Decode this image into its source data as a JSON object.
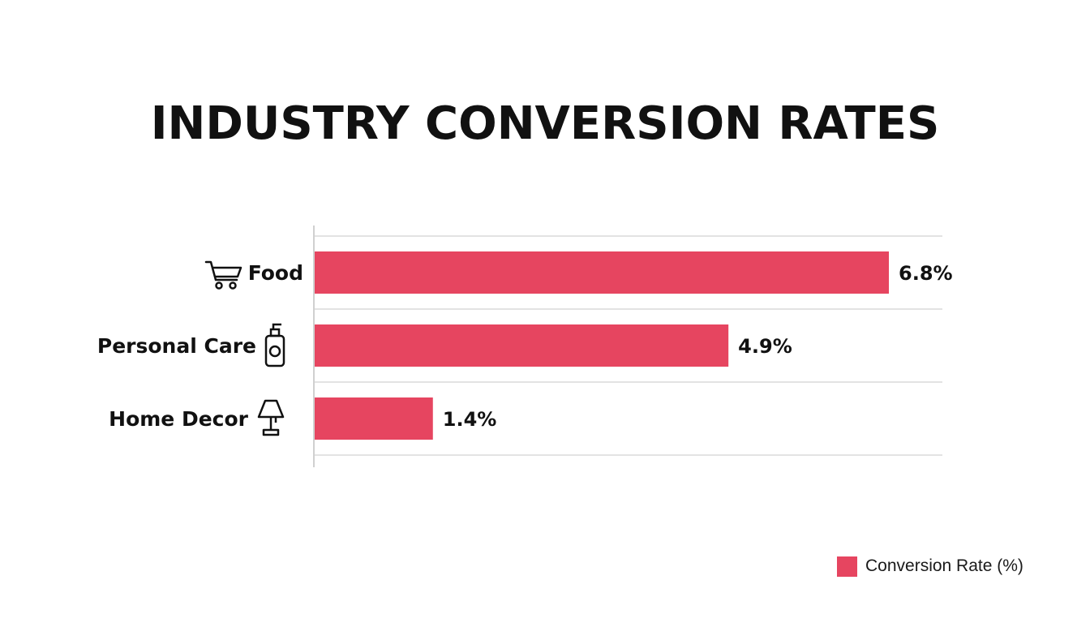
{
  "chart_data": {
    "type": "bar",
    "orientation": "horizontal",
    "title": "INDUSTRY CONVERSION RATES",
    "categories": [
      "Food",
      "Personal Care",
      "Home Decor"
    ],
    "category_icons": [
      "shopping-cart-icon",
      "lotion-bottle-icon",
      "lamp-icon"
    ],
    "series": [
      {
        "name": "Conversion Rate (%)",
        "values": [
          6.8,
          4.9,
          1.4
        ],
        "color": "#e64560"
      }
    ],
    "data_labels": [
      "6.8%",
      "4.9%",
      "1.4%"
    ],
    "xlim": [
      0,
      7.5
    ],
    "grid": true,
    "legend_position": "bottom-right"
  },
  "colors": {
    "bar": "#e64560",
    "text": "#111111",
    "grid": "#e3e3e3",
    "axis": "#d0d0d0"
  }
}
